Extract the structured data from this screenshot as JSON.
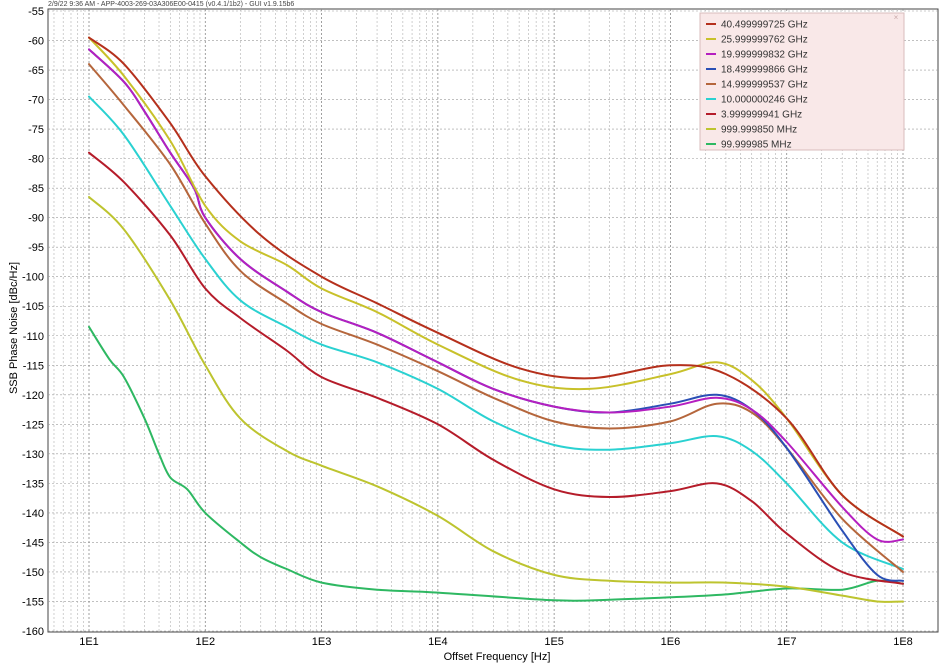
{
  "header": {
    "text": "2/9/22 9:36 AM - APP-4003-269-03A306E00-0415 (v0.4.1/1b2) - GUI v1.9.15b6"
  },
  "legend": {
    "close_glyph": "×"
  },
  "chart_data": {
    "type": "line",
    "title": "",
    "xlabel": "Offset Frequency [Hz]",
    "ylabel": "SSB Phase Noise [dBc/Hz]",
    "xscale": "log",
    "xlim": [
      10,
      100000000
    ],
    "ylim": [
      -160,
      -55
    ],
    "xticks": [
      {
        "value": 10,
        "label": "1E1"
      },
      {
        "value": 100,
        "label": "1E2"
      },
      {
        "value": 1000,
        "label": "1E3"
      },
      {
        "value": 10000,
        "label": "1E4"
      },
      {
        "value": 100000,
        "label": "1E5"
      },
      {
        "value": 1000000,
        "label": "1E6"
      },
      {
        "value": 10000000,
        "label": "1E7"
      },
      {
        "value": 100000000,
        "label": "1E8"
      }
    ],
    "yticks": [
      -55,
      -60,
      -65,
      -70,
      -75,
      -80,
      -85,
      -90,
      -95,
      -100,
      -105,
      -110,
      -115,
      -120,
      -125,
      -130,
      -135,
      -140,
      -145,
      -150,
      -155,
      -160
    ],
    "grid": true,
    "legend_position": "top-right",
    "series": [
      {
        "name": "40.499999725 GHz",
        "color": "#b5301c",
        "x": [
          10,
          20,
          50,
          100,
          300,
          1000,
          3000,
          10000,
          50000,
          200000,
          1000000,
          3000000,
          10000000,
          30000000,
          100000000
        ],
        "y": [
          -59.5,
          -64,
          -74,
          -83,
          -93,
          -100,
          -104.5,
          -109.5,
          -115.5,
          -117.2,
          -115,
          -116.5,
          -124,
          -137,
          -144
        ]
      },
      {
        "name": "25.999999762 GHz",
        "color": "#c8c12a",
        "x": [
          10,
          20,
          50,
          100,
          200,
          500,
          1000,
          3000,
          10000,
          50000,
          200000,
          1000000,
          2500000,
          5000000,
          10000000,
          30000000,
          100000000
        ],
        "y": [
          -59.5,
          -66,
          -77,
          -88,
          -94,
          -98,
          -102,
          -106,
          -111.5,
          -117.5,
          -119,
          -116.5,
          -114.5,
          -117.5,
          -124,
          -137,
          -144
        ]
      },
      {
        "name": "19.999999832 GHz",
        "color": "#b51fc0",
        "x": [
          10,
          20,
          30,
          50,
          80,
          100,
          200,
          500,
          1000,
          3000,
          10000,
          30000,
          100000,
          300000,
          1000000,
          2500000,
          5000000,
          10000000,
          30000000,
          60000000,
          100000000
        ],
        "y": [
          -61.5,
          -67,
          -72,
          -79,
          -85,
          -90,
          -97,
          -102.5,
          -106,
          -109.5,
          -114.5,
          -119,
          -122,
          -123,
          -122,
          -120.5,
          -122.5,
          -128,
          -139,
          -144.5,
          -144.5
        ]
      },
      {
        "name": "18.499999866 GHz",
        "color": "#2a4fb5",
        "x": [
          10,
          20,
          30,
          50,
          80,
          100,
          200,
          500,
          1000,
          3000,
          10000,
          30000,
          100000,
          300000,
          1000000,
          2500000,
          5000000,
          10000000,
          30000000,
          60000000,
          100000000
        ],
        "y": [
          -61.5,
          -67,
          -72,
          -79,
          -85,
          -90,
          -97,
          -102.5,
          -106,
          -109.5,
          -114.5,
          -119,
          -122,
          -123,
          -121.5,
          -120,
          -122.5,
          -129,
          -143,
          -150.5,
          -151.5
        ]
      },
      {
        "name": "14.999999537 GHz",
        "color": "#b5663c",
        "x": [
          10,
          20,
          50,
          100,
          200,
          500,
          1000,
          3000,
          10000,
          30000,
          100000,
          300000,
          1000000,
          2500000,
          5000000,
          10000000,
          30000000,
          100000000
        ],
        "y": [
          -64,
          -71,
          -81,
          -91,
          -99,
          -104.5,
          -108,
          -111.5,
          -116,
          -120.5,
          -124.5,
          -125.7,
          -124.5,
          -121.5,
          -123,
          -129,
          -141,
          -150
        ]
      },
      {
        "name": "10.000000246 GHz",
        "color": "#2ad1d1",
        "x": [
          10,
          20,
          50,
          100,
          200,
          500,
          1000,
          3000,
          10000,
          30000,
          100000,
          300000,
          1000000,
          2500000,
          5000000,
          10000000,
          30000000,
          100000000
        ],
        "y": [
          -69.5,
          -76,
          -88,
          -97,
          -104,
          -108.5,
          -111.5,
          -114.5,
          -119,
          -124.5,
          -128.5,
          -129.3,
          -128.2,
          -127,
          -129.5,
          -135,
          -145,
          -149.5
        ]
      },
      {
        "name": "3.999999941 GHz",
        "color": "#b51c2a",
        "x": [
          10,
          20,
          50,
          100,
          200,
          500,
          1000,
          3000,
          10000,
          30000,
          100000,
          300000,
          1000000,
          2500000,
          5000000,
          10000000,
          30000000,
          100000000
        ],
        "y": [
          -79,
          -84,
          -93,
          -102,
          -107,
          -112.5,
          -117,
          -120.5,
          -125,
          -131,
          -136,
          -137.3,
          -136.3,
          -135,
          -138,
          -143.5,
          -150,
          -152
        ]
      },
      {
        "name": "999.999850 MHz",
        "color": "#bdc42f",
        "x": [
          10,
          20,
          50,
          100,
          200,
          500,
          1000,
          3000,
          10000,
          30000,
          100000,
          300000,
          1000000,
          3000000,
          10000000,
          30000000,
          60000000,
          100000000
        ],
        "y": [
          -86.5,
          -92,
          -104,
          -115,
          -124,
          -129.5,
          -132,
          -135.5,
          -140.5,
          -146.5,
          -150.5,
          -151.5,
          -151.8,
          -151.8,
          -152.5,
          -154,
          -155,
          -155
        ]
      },
      {
        "name": "99.999985 MHz",
        "color": "#2eb862",
        "x": [
          10,
          15,
          20,
          30,
          40,
          50,
          70,
          100,
          200,
          300,
          500,
          1000,
          3000,
          10000,
          100000,
          300000,
          1000000,
          3000000,
          10000000,
          30000000,
          60000000,
          100000000
        ],
        "y": [
          -108.5,
          -114,
          -117,
          -124,
          -130,
          -134,
          -136,
          -140,
          -145,
          -147.5,
          -149.5,
          -151.8,
          -153,
          -153.5,
          -154.8,
          -154.7,
          -154.3,
          -153.8,
          -152.8,
          -153,
          -151.5,
          -152
        ]
      }
    ]
  }
}
